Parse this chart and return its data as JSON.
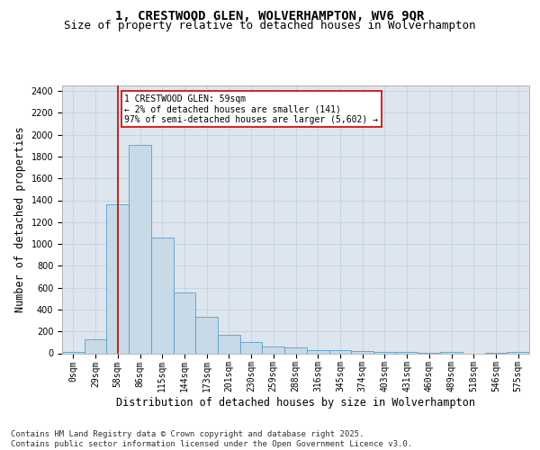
{
  "title_line1": "1, CRESTWOOD GLEN, WOLVERHAMPTON, WV6 9QR",
  "title_line2": "Size of property relative to detached houses in Wolverhampton",
  "xlabel": "Distribution of detached houses by size in Wolverhampton",
  "ylabel": "Number of detached properties",
  "categories": [
    "0sqm",
    "29sqm",
    "58sqm",
    "86sqm",
    "115sqm",
    "144sqm",
    "173sqm",
    "201sqm",
    "230sqm",
    "259sqm",
    "288sqm",
    "316sqm",
    "345sqm",
    "374sqm",
    "403sqm",
    "431sqm",
    "460sqm",
    "489sqm",
    "518sqm",
    "546sqm",
    "575sqm"
  ],
  "values": [
    10,
    125,
    1360,
    1910,
    1055,
    555,
    335,
    170,
    105,
    60,
    55,
    30,
    25,
    20,
    10,
    10,
    5,
    10,
    0,
    5,
    10
  ],
  "bar_color": "#c8d9e8",
  "bar_edge_color": "#5a9fc8",
  "bar_edge_width": 0.6,
  "vline_x": 2,
  "vline_color": "#cc0000",
  "vline_linewidth": 1.2,
  "annotation_text": "1 CRESTWOOD GLEN: 59sqm\n← 2% of detached houses are smaller (141)\n97% of semi-detached houses are larger (5,602) →",
  "annotation_box_edgecolor": "#cc0000",
  "annotation_box_facecolor": "#ffffff",
  "ylim": [
    0,
    2450
  ],
  "yticks": [
    0,
    200,
    400,
    600,
    800,
    1000,
    1200,
    1400,
    1600,
    1800,
    2000,
    2200,
    2400
  ],
  "grid_color": "#c8d4de",
  "background_color": "#dde6ef",
  "footer_text": "Contains HM Land Registry data © Crown copyright and database right 2025.\nContains public sector information licensed under the Open Government Licence v3.0.",
  "title_fontsize": 10,
  "subtitle_fontsize": 9,
  "axis_label_fontsize": 8.5,
  "tick_fontsize": 7,
  "footer_fontsize": 6.5,
  "annot_fontsize": 7
}
